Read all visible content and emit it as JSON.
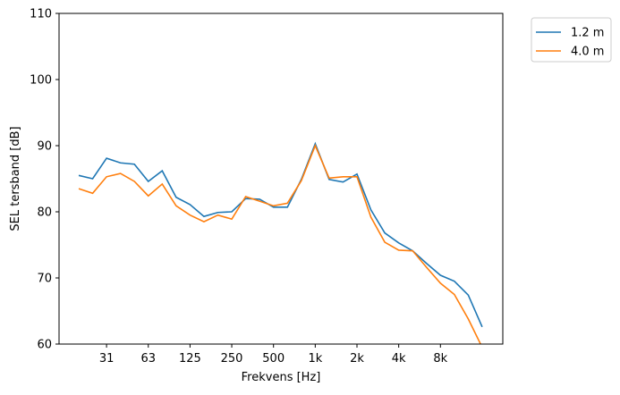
{
  "chart_data": {
    "type": "line",
    "title": "",
    "xlabel": "Frekvens [Hz]",
    "ylabel": "SEL tersband [dB]",
    "ylim": [
      60,
      110
    ],
    "yticks": [
      60,
      70,
      80,
      90,
      100,
      110
    ],
    "x": [
      "20",
      "25",
      "31.5",
      "40",
      "50",
      "63",
      "80",
      "100",
      "125",
      "160",
      "200",
      "250",
      "315",
      "400",
      "500",
      "630",
      "800",
      "1000",
      "1250",
      "1600",
      "2000",
      "2500",
      "3150",
      "4000",
      "5000",
      "6300",
      "8000",
      "10000",
      "12500",
      "16000"
    ],
    "xticks": [
      {
        "index": 2,
        "label": "31"
      },
      {
        "index": 5,
        "label": "63"
      },
      {
        "index": 8,
        "label": "125"
      },
      {
        "index": 11,
        "label": "250"
      },
      {
        "index": 14,
        "label": "500"
      },
      {
        "index": 17,
        "label": "1k"
      },
      {
        "index": 20,
        "label": "2k"
      },
      {
        "index": 23,
        "label": "4k"
      },
      {
        "index": 26,
        "label": "8k"
      }
    ],
    "legend_position": "outside-top-right",
    "grid": false,
    "series": [
      {
        "name": "1.2 m",
        "color": "#1f77b4",
        "values": [
          85.5,
          85.0,
          88.1,
          87.4,
          87.2,
          84.6,
          86.2,
          82.2,
          81.1,
          79.3,
          79.9,
          80.0,
          82.0,
          81.9,
          80.7,
          80.7,
          84.9,
          90.3,
          84.9,
          84.5,
          85.7,
          80.3,
          76.8,
          75.3,
          74.1,
          72.2,
          70.4,
          69.5,
          67.4,
          62.6
        ]
      },
      {
        "name": "4.0 m",
        "color": "#ff7f0e",
        "values": [
          83.5,
          82.8,
          85.3,
          85.8,
          84.6,
          82.4,
          84.2,
          80.9,
          79.5,
          78.5,
          79.5,
          78.9,
          82.3,
          81.6,
          80.9,
          81.3,
          84.7,
          90.0,
          85.1,
          85.3,
          85.3,
          79.2,
          75.4,
          74.2,
          74.1,
          71.6,
          69.2,
          67.5,
          63.8,
          59.5
        ]
      }
    ]
  }
}
